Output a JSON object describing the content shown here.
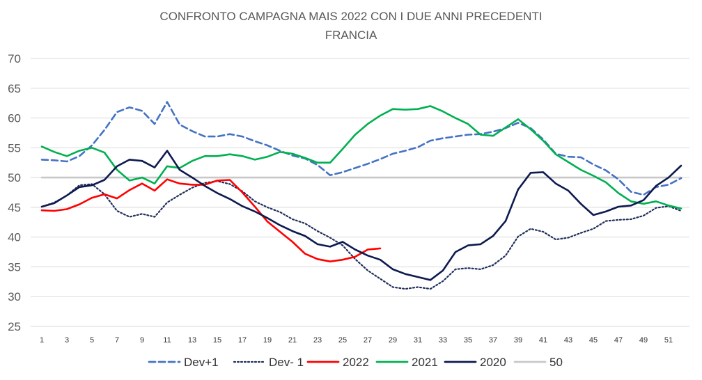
{
  "chart_data": {
    "type": "line",
    "title": "CONFRONTO CAMPAGNA MAIS 2022 CON I DUE ANNI PRECEDENTI",
    "subtitle": "FRANCIA",
    "xlabel": "",
    "ylabel": "",
    "xlim": [
      1,
      52
    ],
    "ylim": [
      25,
      70
    ],
    "yticks": [
      25,
      30,
      35,
      40,
      45,
      50,
      55,
      60,
      65,
      70
    ],
    "xticks": [
      1,
      3,
      5,
      7,
      9,
      11,
      13,
      15,
      17,
      19,
      21,
      23,
      25,
      27,
      29,
      31,
      33,
      35,
      37,
      39,
      41,
      43,
      45,
      47,
      49,
      51
    ],
    "grid": true,
    "legend_position": "bottom",
    "series": [
      {
        "name": "Dev+1",
        "color": "#4472C4",
        "style": "dashed",
        "x": [
          1,
          2,
          3,
          4,
          5,
          6,
          7,
          8,
          9,
          10,
          11,
          12,
          13,
          14,
          15,
          16,
          17,
          18,
          19,
          20,
          21,
          22,
          23,
          24,
          25,
          26,
          27,
          28,
          29,
          30,
          31,
          32,
          33,
          34,
          35,
          36,
          37,
          38,
          39,
          40,
          41,
          42,
          43,
          44,
          45,
          46,
          47,
          48,
          49,
          50,
          51,
          52
        ],
        "values": [
          53.0,
          52.9,
          52.7,
          53.6,
          55.4,
          58.0,
          61.0,
          61.8,
          61.2,
          59.0,
          62.7,
          58.9,
          57.8,
          56.9,
          56.9,
          57.3,
          56.9,
          56.1,
          55.4,
          54.5,
          53.7,
          53.2,
          52.1,
          50.4,
          50.9,
          51.6,
          52.3,
          53.1,
          54.0,
          54.5,
          55.1,
          56.2,
          56.6,
          56.9,
          57.2,
          57.3,
          57.7,
          58.3,
          59.2,
          58.3,
          56.4,
          54.0,
          53.5,
          53.4,
          52.2,
          51.2,
          49.7,
          47.6,
          47.1,
          48.4,
          48.8,
          49.9
        ]
      },
      {
        "name": "Dev- 1",
        "color": "#1F2D5A",
        "style": "dotted",
        "x": [
          1,
          2,
          3,
          4,
          5,
          6,
          7,
          8,
          9,
          10,
          11,
          12,
          13,
          14,
          15,
          16,
          17,
          18,
          19,
          20,
          21,
          22,
          23,
          24,
          25,
          26,
          27,
          28,
          29,
          30,
          31,
          32,
          33,
          34,
          35,
          36,
          37,
          38,
          39,
          40,
          41,
          42,
          43,
          44,
          45,
          46,
          47,
          48,
          49,
          50,
          51,
          52
        ],
        "values": [
          45.1,
          45.8,
          47.0,
          48.7,
          48.9,
          47.2,
          44.4,
          43.4,
          43.9,
          43.4,
          45.8,
          47.1,
          48.3,
          49.1,
          49.4,
          48.9,
          47.7,
          46.0,
          45.0,
          44.2,
          43.0,
          42.3,
          41.0,
          39.9,
          38.6,
          36.3,
          34.4,
          33.0,
          31.6,
          31.3,
          31.6,
          31.3,
          32.6,
          34.6,
          34.8,
          34.6,
          35.3,
          36.9,
          40.1,
          41.4,
          40.9,
          39.6,
          39.9,
          40.7,
          41.4,
          42.7,
          42.9,
          43.0,
          43.6,
          44.9,
          45.2,
          44.4
        ]
      },
      {
        "name": "2022",
        "color": "#FF0000",
        "style": "solid",
        "x": [
          1,
          2,
          3,
          4,
          5,
          6,
          7,
          8,
          9,
          10,
          11,
          12,
          13,
          14,
          15,
          16,
          17,
          18,
          19,
          20,
          21,
          22,
          23,
          24,
          25,
          26,
          27,
          28
        ],
        "values": [
          44.5,
          44.4,
          44.7,
          45.5,
          46.6,
          47.2,
          46.5,
          47.9,
          49.0,
          47.8,
          49.7,
          49.0,
          48.8,
          48.8,
          49.5,
          49.6,
          47.5,
          45.1,
          42.6,
          40.9,
          39.2,
          37.2,
          36.3,
          35.9,
          36.2,
          36.7,
          37.9,
          38.1
        ]
      },
      {
        "name": "2021",
        "color": "#00B050",
        "style": "solid",
        "x": [
          1,
          2,
          3,
          4,
          5,
          6,
          7,
          8,
          9,
          10,
          11,
          12,
          13,
          14,
          15,
          16,
          17,
          18,
          19,
          20,
          21,
          22,
          23,
          24,
          25,
          26,
          27,
          28,
          29,
          30,
          31,
          32,
          33,
          34,
          35,
          36,
          37,
          38,
          39,
          40,
          41,
          42,
          43,
          44,
          45,
          46,
          47,
          48,
          49,
          50,
          51,
          52
        ],
        "values": [
          55.2,
          54.3,
          53.6,
          54.5,
          55.0,
          54.2,
          51.3,
          49.5,
          50.0,
          49.0,
          51.9,
          51.6,
          52.8,
          53.6,
          53.6,
          53.9,
          53.6,
          53.0,
          53.5,
          54.3,
          54.0,
          53.3,
          52.5,
          52.5,
          54.8,
          57.2,
          59.0,
          60.4,
          61.5,
          61.4,
          61.5,
          62.0,
          61.1,
          60.0,
          59.0,
          57.2,
          57.0,
          58.4,
          59.8,
          58.1,
          56.2,
          53.9,
          52.6,
          51.3,
          50.3,
          49.2,
          47.4,
          46.0,
          45.6,
          46.0,
          45.3,
          44.8
        ]
      },
      {
        "name": "2020",
        "color": "#0D1A4F",
        "style": "solid",
        "x": [
          1,
          2,
          3,
          4,
          5,
          6,
          7,
          8,
          9,
          10,
          11,
          12,
          13,
          14,
          15,
          16,
          17,
          18,
          19,
          20,
          21,
          22,
          23,
          24,
          25,
          26,
          27,
          28,
          29,
          30,
          31,
          32,
          33,
          34,
          35,
          36,
          37,
          38,
          39,
          40,
          41,
          42,
          43,
          44,
          45,
          46,
          47,
          48,
          49,
          50,
          51,
          52
        ],
        "values": [
          45.1,
          45.7,
          47.0,
          48.4,
          48.7,
          49.6,
          51.9,
          53.0,
          52.8,
          51.7,
          54.5,
          51.3,
          50.0,
          48.6,
          47.4,
          46.4,
          45.2,
          44.3,
          43.2,
          42.0,
          41.0,
          40.2,
          38.8,
          38.4,
          39.2,
          37.9,
          36.9,
          36.2,
          34.6,
          33.8,
          33.3,
          32.8,
          34.4,
          37.5,
          38.6,
          38.8,
          40.2,
          42.7,
          48.0,
          50.8,
          50.9,
          49.0,
          47.8,
          45.6,
          43.7,
          44.3,
          45.1,
          45.3,
          46.2,
          48.6,
          50.0,
          52.0
        ]
      },
      {
        "name": "50",
        "color": "#C8C8C8",
        "style": "solid",
        "x": [
          1,
          52
        ],
        "values": [
          50,
          50
        ]
      }
    ]
  }
}
